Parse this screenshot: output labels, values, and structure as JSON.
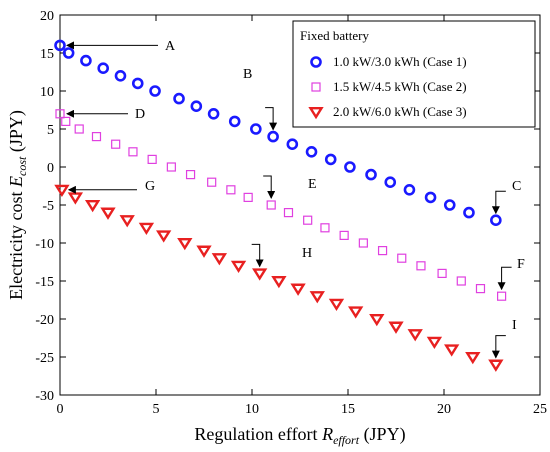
{
  "chart_data": {
    "type": "scatter",
    "xlim": [
      0,
      25
    ],
    "ylim": [
      -30,
      20
    ],
    "xticks": [
      0,
      5,
      10,
      15,
      20,
      25
    ],
    "yticks": [
      -30,
      -25,
      -20,
      -15,
      -10,
      -5,
      0,
      5,
      10,
      15,
      20
    ],
    "xlabel": {
      "main": "Regulation effort ",
      "var": "R",
      "sub": "effort",
      "unit": " (JPY)"
    },
    "ylabel": {
      "main": "Electricity cost ",
      "var": "E",
      "sub": "cost",
      "unit": " (JPY)"
    },
    "grid": false,
    "legend": {
      "title": "Fixed battery",
      "placement": "top-right",
      "entries": [
        "1.0 kW/3.0 kWh (Case 1)",
        "1.5 kW/4.5 kWh (Case 2)",
        "2.0 kW/6.0 kWh (Case 3)"
      ]
    },
    "series": [
      {
        "name": "1.0 kW/3.0 kWh (Case 1)",
        "marker": "circle",
        "color": "#1a1aff",
        "x": [
          0,
          0.45,
          1.35,
          2.25,
          3.15,
          4.05,
          4.95,
          6.2,
          7.1,
          8.0,
          9.1,
          10.2,
          11.1,
          12.1,
          13.1,
          14.1,
          15.1,
          16.2,
          17.2,
          18.2,
          19.3,
          20.3,
          21.3,
          22.7
        ],
        "y": [
          16,
          15,
          14,
          13,
          12,
          11,
          10,
          9,
          8,
          7,
          6,
          5,
          4,
          3,
          2,
          1,
          0,
          -1,
          -2,
          -3,
          -4,
          -5,
          -6,
          -7
        ]
      },
      {
        "name": "1.5 kW/4.5 kWh (Case 2)",
        "marker": "square",
        "color": "#e040e0",
        "x": [
          0,
          0.3,
          1.0,
          1.9,
          2.9,
          3.8,
          4.8,
          5.8,
          6.8,
          7.9,
          8.9,
          9.8,
          11.0,
          11.9,
          12.9,
          13.8,
          14.8,
          15.8,
          16.8,
          17.8,
          18.8,
          19.9,
          20.9,
          21.9,
          23.0
        ],
        "y": [
          7,
          6,
          5,
          4,
          3,
          2,
          1,
          0,
          -1,
          -2,
          -3,
          -4,
          -5,
          -6,
          -7,
          -8,
          -9,
          -10,
          -11,
          -12,
          -13,
          -14,
          -15,
          -16,
          -17
        ]
      },
      {
        "name": "2.0 kW/6.0 kWh (Case 3)",
        "marker": "triangle-down",
        "color": "#e82020",
        "x": [
          0.1,
          0.8,
          1.7,
          2.5,
          3.5,
          4.5,
          5.4,
          6.5,
          7.5,
          8.3,
          9.3,
          10.4,
          11.4,
          12.4,
          13.4,
          14.4,
          15.4,
          16.5,
          17.5,
          18.5,
          19.5,
          20.4,
          21.5,
          22.7
        ],
        "y": [
          -3,
          -4,
          -5,
          -6,
          -7,
          -8,
          -9,
          -10,
          -11,
          -12,
          -13,
          -14,
          -15,
          -16,
          -17,
          -18,
          -19,
          -20,
          -21,
          -22,
          -23,
          -24,
          -25,
          -26
        ]
      }
    ],
    "annotations": [
      {
        "label": "A",
        "target": [
          0,
          16
        ]
      },
      {
        "label": "B",
        "target": [
          11.1,
          4
        ]
      },
      {
        "label": "C",
        "target": [
          22.7,
          -7
        ]
      },
      {
        "label": "D",
        "target": [
          0,
          7
        ]
      },
      {
        "label": "E",
        "target": [
          11.0,
          -5
        ]
      },
      {
        "label": "F",
        "target": [
          23.0,
          -17
        ]
      },
      {
        "label": "G",
        "target": [
          0.1,
          -3
        ]
      },
      {
        "label": "H",
        "target": [
          10.4,
          -14
        ]
      },
      {
        "label": "I",
        "target": [
          22.7,
          -26
        ]
      }
    ]
  }
}
